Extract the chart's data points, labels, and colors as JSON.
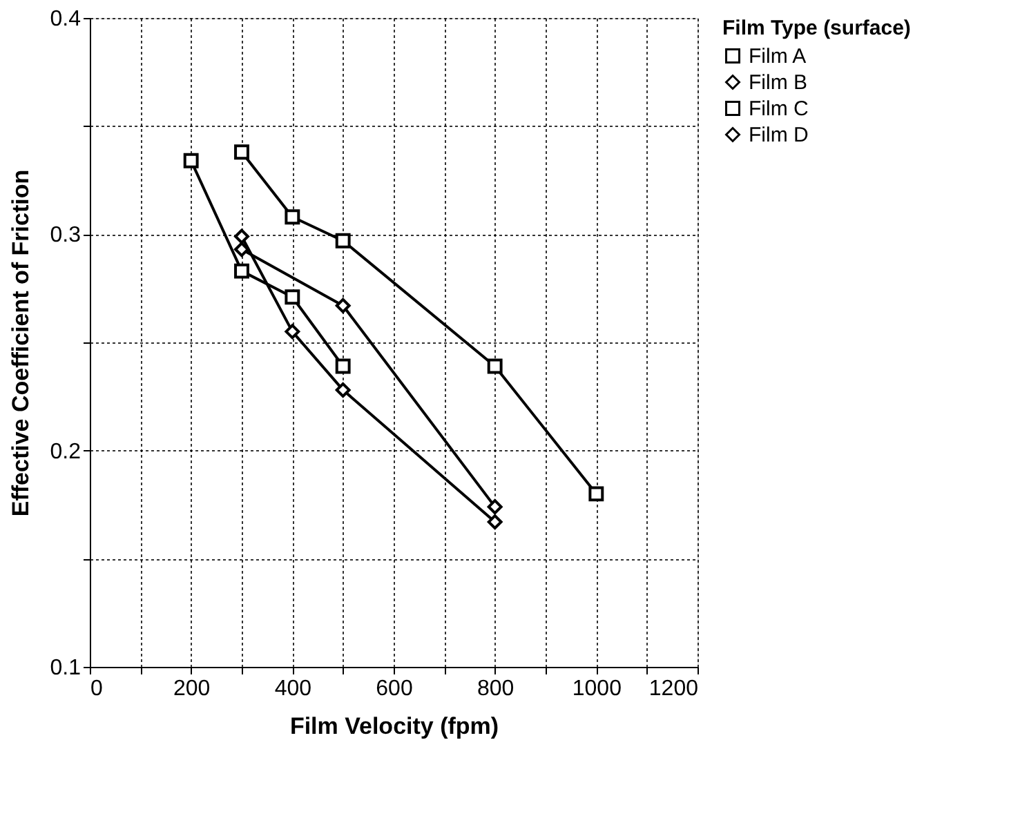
{
  "chart_data": {
    "type": "line",
    "xlabel": "Film  Velocity    (fpm)",
    "ylabel": "Effective Coefficient of Friction",
    "legend_title": "Film  Type  (surface)",
    "series": [
      {
        "name": "Film A",
        "color": "#000000",
        "marker": "square",
        "x": [
          200,
          300,
          400,
          500
        ],
        "values": [
          0.334,
          0.283,
          0.271,
          0.239
        ]
      },
      {
        "name": "Film B",
        "color": "#000000",
        "marker": "diamond",
        "x": [
          300,
          500,
          800
        ],
        "values": [
          0.293,
          0.267,
          0.174
        ]
      },
      {
        "name": "Film C",
        "color": "#000000",
        "marker": "square",
        "x": [
          300,
          400,
          500,
          800,
          1000
        ],
        "values": [
          0.338,
          0.308,
          0.297,
          0.239,
          0.18
        ]
      },
      {
        "name": "Film D",
        "color": "#000000",
        "marker": "diamond",
        "x": [
          300,
          400,
          500,
          800
        ],
        "values": [
          0.299,
          0.255,
          0.228,
          0.167
        ]
      }
    ],
    "xlim": [
      0,
      1200
    ],
    "ylim": [
      0.1,
      0.4
    ],
    "xticks": [
      0,
      {
        "value": 100,
        "label": null
      },
      200,
      {
        "value": 300,
        "label": null
      },
      400,
      {
        "value": 500,
        "label": null
      },
      600,
      {
        "value": 700,
        "label": null
      },
      800,
      {
        "value": 900,
        "label": null
      },
      1000,
      {
        "value": 1100,
        "label": null
      },
      1200
    ],
    "yticks": [
      0.1,
      {
        "value": 0.15,
        "label": null
      },
      0.2,
      {
        "value": 0.25,
        "label": null
      },
      0.3,
      {
        "value": 0.35,
        "label": null
      },
      0.4
    ],
    "grid": true,
    "legend": "right",
    "line_style": "solid"
  }
}
